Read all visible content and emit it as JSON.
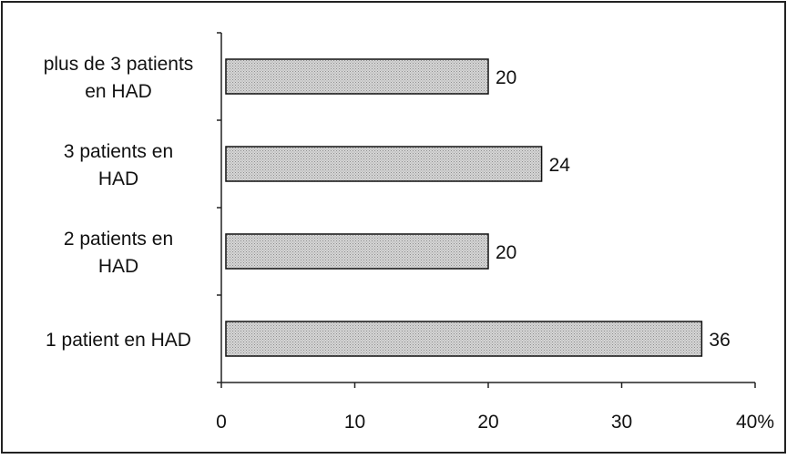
{
  "chart_data": {
    "type": "bar",
    "orientation": "horizontal",
    "categories": [
      [
        "1 patient en HAD"
      ],
      [
        "2 patients en",
        "HAD"
      ],
      [
        "3 patients en",
        "HAD"
      ],
      [
        "plus de 3 patients",
        "en HAD"
      ]
    ],
    "values": [
      36,
      20,
      24,
      20
    ],
    "data_labels": [
      "36",
      "20",
      "24",
      "20"
    ],
    "x_ticks": [
      "0",
      "10",
      "20",
      "30",
      "40%"
    ],
    "xlim": [
      0,
      40
    ],
    "title": "",
    "xlabel": "",
    "ylabel": "",
    "grid": false,
    "legend": "none",
    "bar_color": "#c8c8c8",
    "bar_border_color": "#111111"
  }
}
